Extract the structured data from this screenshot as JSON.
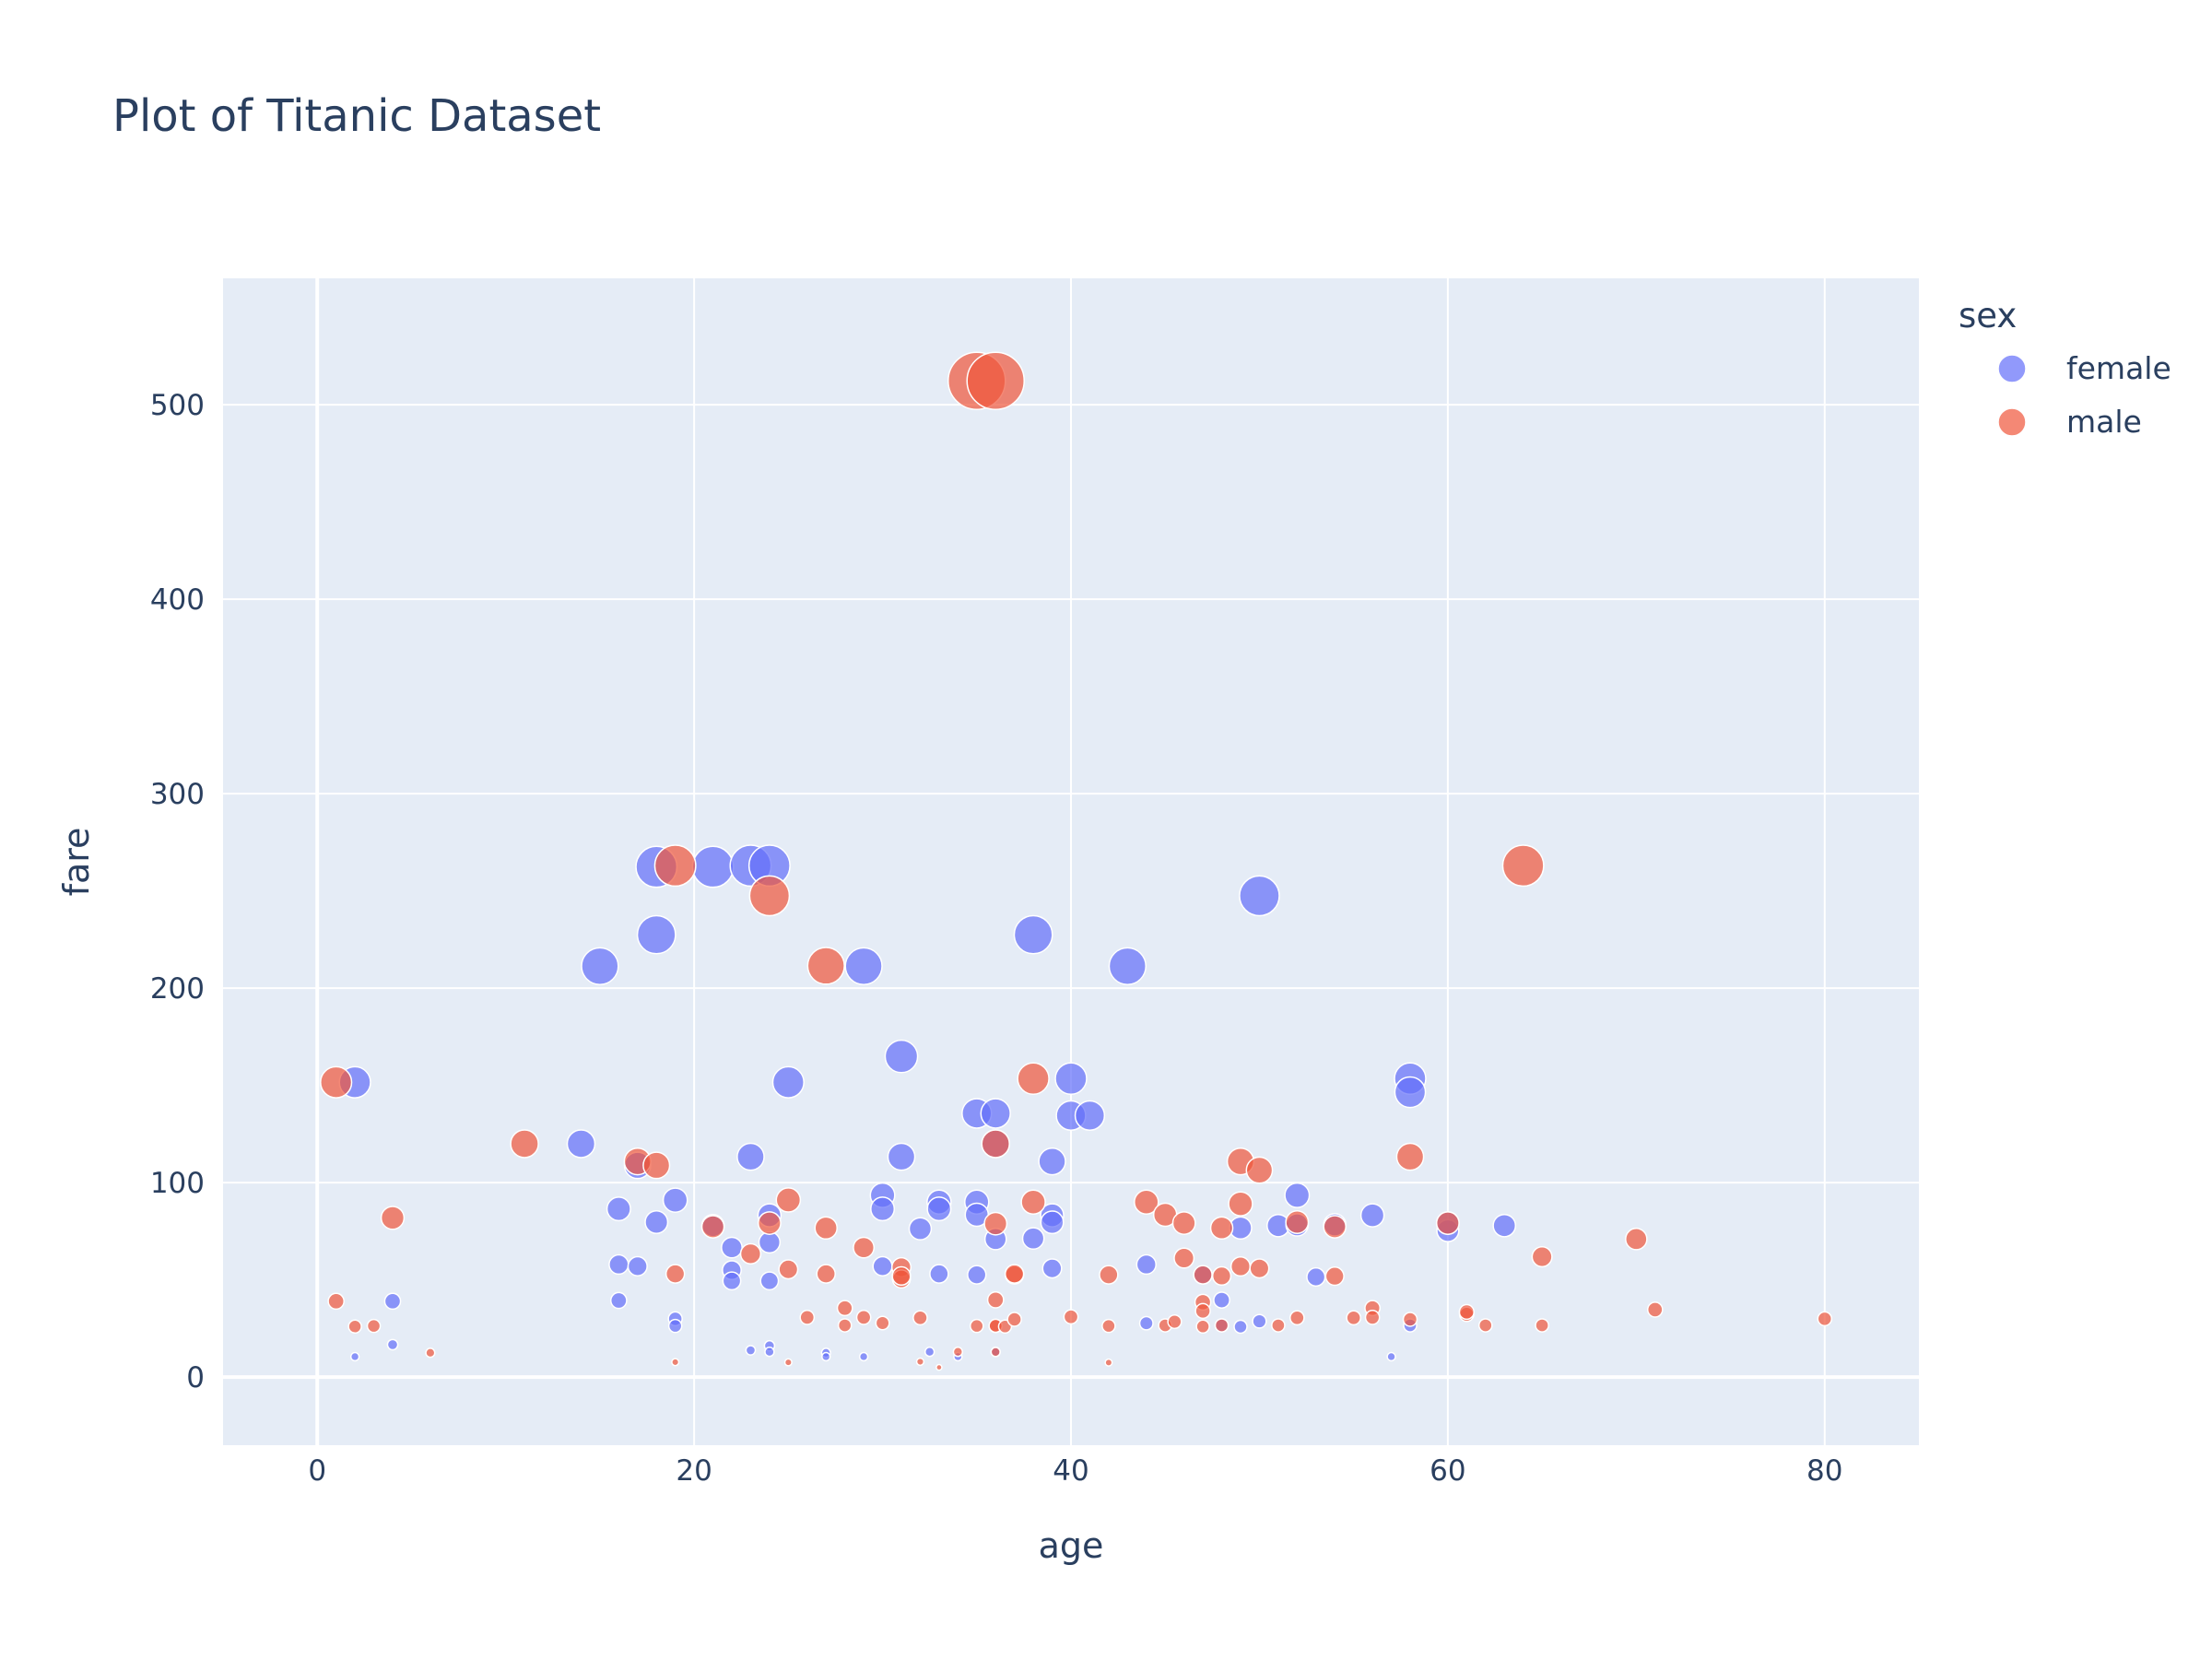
{
  "chart_data": {
    "type": "scatter",
    "title": "Plot of Titanic Dataset",
    "xlabel": "age",
    "ylabel": "fare",
    "xlim": [
      -5,
      85
    ],
    "ylim": [
      -35,
      565
    ],
    "x_ticks": [
      0,
      20,
      40,
      60,
      80
    ],
    "y_ticks": [
      0,
      100,
      200,
      300,
      400,
      500
    ],
    "grid": true,
    "legend_title": "sex",
    "legend_position": "top-right",
    "series": [
      {
        "name": "female",
        "color": "#636efa",
        "points": [
          [
            2,
            151.6
          ],
          [
            15,
            211.3
          ],
          [
            18,
            262.4
          ],
          [
            18,
            227.5
          ],
          [
            21,
            262.4
          ],
          [
            23,
            263
          ],
          [
            24,
            263
          ],
          [
            24,
            69.3
          ],
          [
            24,
            83.2
          ],
          [
            25,
            151.6
          ],
          [
            29,
            211.3
          ],
          [
            31,
            164.9
          ],
          [
            35,
            135.6
          ],
          [
            36,
            135.6
          ],
          [
            38,
            227.5
          ],
          [
            40,
            153.5
          ],
          [
            40,
            134.5
          ],
          [
            41,
            134.5
          ],
          [
            43,
            211.3
          ],
          [
            50,
            247.5
          ],
          [
            58,
            153.5
          ],
          [
            58,
            146.5
          ],
          [
            14,
            120
          ],
          [
            16,
            86.5
          ],
          [
            17,
            108.9
          ],
          [
            18,
            79.7
          ],
          [
            19,
            91
          ],
          [
            23,
            113.3
          ],
          [
            31,
            113.3
          ],
          [
            30,
            93.5
          ],
          [
            30,
            86.5
          ],
          [
            33,
            90
          ],
          [
            33,
            86.5
          ],
          [
            35,
            90
          ],
          [
            35,
            83.5
          ],
          [
            36,
            120
          ],
          [
            39,
            110.9
          ],
          [
            39,
            83.2
          ],
          [
            39,
            79.6
          ],
          [
            22,
            66.6
          ],
          [
            22,
            55
          ],
          [
            22,
            49.5
          ],
          [
            24,
            49.5
          ],
          [
            16,
            57.9
          ],
          [
            17,
            57
          ],
          [
            21,
            77.9
          ],
          [
            32,
            76.3
          ],
          [
            36,
            71
          ],
          [
            38,
            71.3
          ],
          [
            30,
            57
          ],
          [
            33,
            53.1
          ],
          [
            35,
            52.6
          ],
          [
            39,
            55.9
          ],
          [
            44,
            57.9
          ],
          [
            49,
            76.7
          ],
          [
            51,
            77.9
          ],
          [
            52,
            78.3
          ],
          [
            52,
            93.5
          ],
          [
            54,
            78.3
          ],
          [
            56,
            83.2
          ],
          [
            60,
            75.3
          ],
          [
            60,
            79.2
          ],
          [
            63,
            77.9
          ],
          [
            53,
            51.5
          ],
          [
            47,
            52.6
          ],
          [
            48,
            39.6
          ],
          [
            16,
            39.4
          ],
          [
            4,
            39
          ],
          [
            19,
            30
          ],
          [
            19,
            26.3
          ],
          [
            44,
            27.7
          ],
          [
            48,
            26.6
          ],
          [
            49,
            25.9
          ],
          [
            50,
            28.7
          ],
          [
            58,
            26.6
          ],
          [
            57,
            10.5
          ],
          [
            2,
            10.5
          ],
          [
            4,
            16.7
          ],
          [
            23,
            13.8
          ],
          [
            24,
            16.1
          ],
          [
            24,
            13
          ],
          [
            27,
            12.5
          ],
          [
            27,
            10.5
          ],
          [
            29,
            10.5
          ],
          [
            32.5,
            13
          ],
          [
            34,
            10.5
          ],
          [
            36,
            13
          ]
        ],
        "sizes": [
          151.6,
          211.3,
          262.4,
          227.5,
          262.4,
          263,
          263,
          69.3,
          83.2,
          151.6,
          211.3,
          164.9,
          135.6,
          135.6,
          227.5,
          153.5,
          134.5,
          134.5,
          211.3,
          247.5,
          153.5,
          146.5,
          120,
          86.5,
          108.9,
          79.7,
          91,
          113.3,
          113.3,
          93.5,
          86.5,
          90,
          86.5,
          90,
          83.5,
          120,
          110.9,
          83.2,
          79.6,
          66.6,
          55,
          49.5,
          49.5,
          57.9,
          57,
          77.9,
          76.3,
          71,
          71.3,
          57,
          53.1,
          52.6,
          55.9,
          57.9,
          76.7,
          77.9,
          78.3,
          93.5,
          78.3,
          83.2,
          75.3,
          79.2,
          77.9,
          51.5,
          52.6,
          39.6,
          39.4,
          39,
          30,
          26.3,
          27.7,
          26.6,
          25.9,
          28.7,
          26.6,
          10.5,
          10.5,
          16.7,
          13.8,
          16.1,
          13,
          12.5,
          10.5,
          10.5,
          13,
          10.5,
          13
        ]
      },
      {
        "name": "male",
        "color": "#ef553b",
        "points": [
          [
            35,
            512.3
          ],
          [
            36,
            512.3
          ],
          [
            19,
            263
          ],
          [
            24,
            247.5
          ],
          [
            27,
            211.5
          ],
          [
            64,
            263
          ],
          [
            1,
            151.6
          ],
          [
            38,
            153.5
          ],
          [
            36,
            120
          ],
          [
            11,
            120
          ],
          [
            17,
            110.9
          ],
          [
            18,
            108.9
          ],
          [
            49,
            110.9
          ],
          [
            50,
            106.4
          ],
          [
            58,
            113.3
          ],
          [
            44,
            90
          ],
          [
            49,
            89.1
          ],
          [
            25,
            91.1
          ],
          [
            45,
            83.5
          ],
          [
            46,
            79.2
          ],
          [
            60,
            79.2
          ],
          [
            24,
            79.2
          ],
          [
            27,
            76.7
          ],
          [
            36,
            78.9
          ],
          [
            48,
            76.7
          ],
          [
            52,
            79.7
          ],
          [
            54,
            77.3
          ],
          [
            21,
            77.3
          ],
          [
            38,
            90
          ],
          [
            4,
            81.9
          ],
          [
            29,
            66.6
          ],
          [
            23,
            63.4
          ],
          [
            46,
            61.2
          ],
          [
            65,
            61.9
          ],
          [
            70,
            71
          ],
          [
            31,
            56.5
          ],
          [
            25,
            55.4
          ],
          [
            27,
            53.1
          ],
          [
            19,
            53.1
          ],
          [
            31,
            50.5
          ],
          [
            31,
            52
          ],
          [
            37,
            52.6
          ],
          [
            37,
            53.1
          ],
          [
            42,
            52.6
          ],
          [
            47,
            52.6
          ],
          [
            48,
            52
          ],
          [
            49,
            56.9
          ],
          [
            50,
            55.9
          ],
          [
            54,
            51.9
          ],
          [
            36,
            39.7
          ],
          [
            28,
            35.5
          ],
          [
            47,
            38.5
          ],
          [
            47,
            34
          ],
          [
            56,
            35.5
          ],
          [
            71,
            34.7
          ],
          [
            1,
            39
          ],
          [
            2,
            26
          ],
          [
            3,
            26.3
          ],
          [
            6,
            12.5
          ],
          [
            19,
            7.7
          ],
          [
            25,
            7.6
          ],
          [
            26,
            30.7
          ],
          [
            28,
            26.6
          ],
          [
            29,
            30.7
          ],
          [
            30,
            27.8
          ],
          [
            32,
            30.5
          ],
          [
            32,
            7.9
          ],
          [
            33,
            5
          ],
          [
            34,
            13
          ],
          [
            35,
            26.3
          ],
          [
            36,
            26.3
          ],
          [
            36,
            26.4
          ],
          [
            36.5,
            26
          ],
          [
            37,
            29.7
          ],
          [
            40,
            31
          ],
          [
            42,
            26.3
          ],
          [
            42,
            7.5
          ],
          [
            45,
            26.6
          ],
          [
            45.5,
            28.5
          ],
          [
            47,
            26
          ],
          [
            48,
            26.6
          ],
          [
            51,
            26.6
          ],
          [
            52,
            30.5
          ],
          [
            55,
            30.5
          ],
          [
            56,
            30.7
          ],
          [
            58,
            29.7
          ],
          [
            61,
            32.3
          ],
          [
            61,
            33.5
          ],
          [
            62,
            26.6
          ],
          [
            65,
            26.6
          ],
          [
            80,
            30
          ],
          [
            36,
            12.9
          ]
        ],
        "sizes": [
          512.3,
          512.3,
          263,
          247.5,
          211.5,
          263,
          151.6,
          153.5,
          120,
          120,
          110.9,
          108.9,
          110.9,
          106.4,
          113.3,
          90,
          89.1,
          91.1,
          83.5,
          79.2,
          79.2,
          79.2,
          76.7,
          78.9,
          76.7,
          79.7,
          77.3,
          77.3,
          90,
          81.9,
          66.6,
          63.4,
          61.2,
          61.9,
          71,
          56.5,
          55.4,
          53.1,
          53.1,
          50.5,
          52,
          52.6,
          53.1,
          52.6,
          52.6,
          52,
          56.9,
          55.9,
          51.9,
          39.7,
          35.5,
          38.5,
          34,
          35.5,
          34.7,
          39,
          26,
          26.3,
          12.5,
          7.7,
          7.6,
          30.7,
          26.6,
          30.7,
          27.8,
          30.5,
          7.9,
          5,
          13,
          26.3,
          26.3,
          26.4,
          26,
          29.7,
          31,
          26.3,
          7.5,
          26.6,
          28.5,
          26,
          26.6,
          26.6,
          30.5,
          30.5,
          30.7,
          29.7,
          32.3,
          33.5,
          26.6,
          26.6,
          30,
          12.9
        ]
      }
    ]
  }
}
